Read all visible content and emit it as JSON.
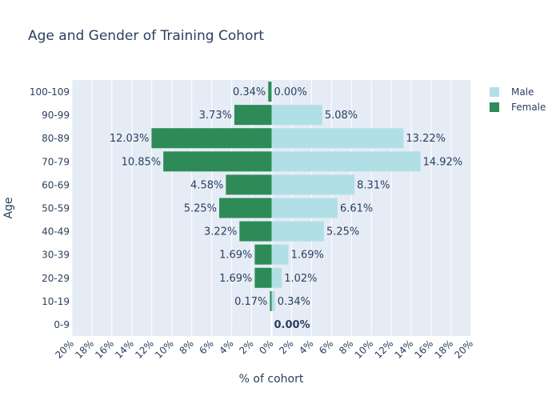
{
  "chart_data": {
    "type": "bar",
    "orientation": "horizontal",
    "title": "Age and Gender of Training Cohort",
    "xlabel": "% of cohort",
    "ylabel": "Age",
    "xlim": [
      -20,
      20
    ],
    "x_tick_values": [
      -20,
      -18,
      -16,
      -14,
      -12,
      -10,
      -8,
      -6,
      -4,
      -2,
      0,
      2,
      4,
      6,
      8,
      10,
      12,
      14,
      16,
      18,
      20
    ],
    "x_tick_labels": [
      "20%",
      "18%",
      "16%",
      "14%",
      "12%",
      "10%",
      "8%",
      "6%",
      "4%",
      "2%",
      "0%",
      "2%",
      "4%",
      "6%",
      "8%",
      "10%",
      "12%",
      "14%",
      "16%",
      "18%",
      "20%"
    ],
    "categories": [
      "0-9",
      "10-19",
      "20-29",
      "30-39",
      "40-49",
      "50-59",
      "60-69",
      "70-79",
      "80-89",
      "90-99",
      "100-109"
    ],
    "series": [
      {
        "name": "Male",
        "color": "#b0e0e6",
        "values": [
          0.0,
          0.34,
          1.02,
          1.69,
          5.25,
          6.61,
          8.31,
          14.92,
          13.22,
          5.08,
          0.0
        ],
        "labels": [
          "0.00%",
          "0.34%",
          "1.02%",
          "1.69%",
          "5.25%",
          "6.61%",
          "8.31%",
          "14.92%",
          "13.22%",
          "5.08%",
          "0.00%"
        ]
      },
      {
        "name": "Female",
        "color": "#2e8b57",
        "values": [
          0.0,
          0.17,
          1.69,
          1.69,
          3.22,
          5.25,
          4.58,
          10.85,
          12.03,
          3.73,
          0.34
        ],
        "labels": [
          "",
          "0.17%",
          "1.69%",
          "1.69%",
          "3.22%",
          "5.25%",
          "4.58%",
          "10.85%",
          "12.03%",
          "3.73%",
          "0.34%"
        ]
      }
    ],
    "overlay_label": {
      "category": "0-9",
      "text": "0.00%"
    },
    "legend_position": "top-right",
    "grid": true,
    "plot_background": "#e5ecf6"
  }
}
